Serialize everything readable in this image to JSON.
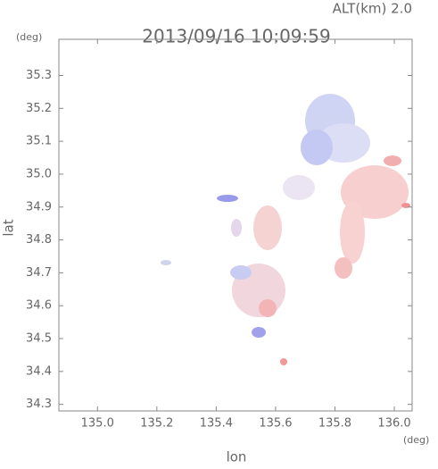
{
  "chart_data": {
    "type": "radar-map",
    "title": "2013/09/16 10:09:59",
    "subtitle": "ALT(km) 2.0",
    "y_unit": "(deg)",
    "x_unit": "(deg)",
    "xlabel": "lon",
    "ylabel": "lat",
    "xlim": [
      134.87,
      136.06
    ],
    "ylim": [
      34.28,
      35.41
    ],
    "xticks": [
      {
        "value": 135,
        "label": "135.0"
      },
      135.2,
      135.4,
      135.6,
      135.8,
      {
        "value": 136,
        "label": "136.0"
      }
    ],
    "yticks": [
      34.3,
      34.4,
      34.5,
      34.6,
      34.7,
      34.8,
      34.9,
      {
        "value": 35,
        "label": "35.0"
      },
      35.1,
      35.2,
      35.3
    ]
  }
}
